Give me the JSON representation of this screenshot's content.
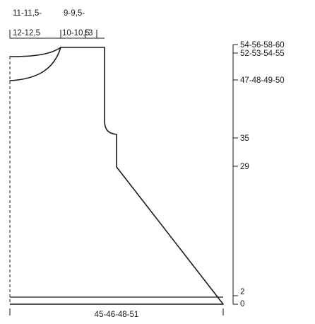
{
  "top_measurements": {
    "shoulder_width_line1": "11-11,5-",
    "shoulder_width_line2": "12-12,5",
    "neck_width_line1": "9-9,5-",
    "neck_width_line2": "10-10,5",
    "neck_depth_offset": "3"
  },
  "height_labels": {
    "total_height": "54-56-58-60",
    "shoulder_height": "52-53-54-55",
    "neck_front_height": "47-48-49-50",
    "armhole_height": "35",
    "waist_height": "29",
    "rib_height": "2",
    "base": "0"
  },
  "bottom_measurement": {
    "hem_width": "45-46-48-51"
  },
  "colors": {
    "line": "#1a1a1a",
    "text": "#1a1a1a",
    "background": "#ffffff"
  }
}
